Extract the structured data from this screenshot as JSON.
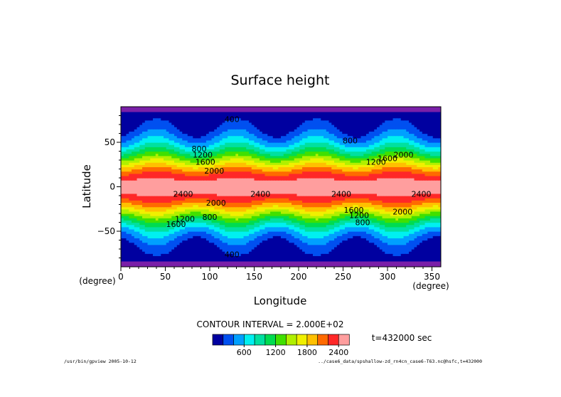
{
  "chart_data": {
    "type": "heatmap",
    "title": "Surface height",
    "xlabel": "Longitude",
    "ylabel": "Latitude",
    "x_unit": "(degree)",
    "y_unit": "(degree)",
    "xlim": [
      0,
      360
    ],
    "ylim": [
      -90,
      90
    ],
    "x_ticks": [
      0,
      50,
      100,
      150,
      200,
      250,
      300,
      350
    ],
    "y_ticks": [
      50,
      0,
      -50
    ],
    "y_tick_labels": [
      "50",
      "0",
      "−50"
    ],
    "contour_interval": 200,
    "contour_interval_text": "CONTOUR INTERVAL = 2.000E+02",
    "time_text": "t=432000 sec",
    "field": {
      "description": "wave-4 pattern of surface height",
      "wavenumber": 4,
      "max": 2500,
      "min": 0
    },
    "contour_labels": [
      {
        "text": "400",
        "lon": 125,
        "lat": 76
      },
      {
        "text": "400",
        "lon": 125,
        "lat": -76
      },
      {
        "text": "800",
        "lon": 258,
        "lat": 52
      },
      {
        "text": "800",
        "lon": 88,
        "lat": 43
      },
      {
        "text": "1200",
        "lon": 92,
        "lat": 36
      },
      {
        "text": "1600",
        "lon": 95,
        "lat": 28
      },
      {
        "text": "2000",
        "lon": 105,
        "lat": 18
      },
      {
        "text": "1200",
        "lon": 287,
        "lat": 28
      },
      {
        "text": "1600",
        "lon": 300,
        "lat": 32
      },
      {
        "text": "2000",
        "lon": 318,
        "lat": 36
      },
      {
        "text": "2400",
        "lon": 70,
        "lat": -8
      },
      {
        "text": "2400",
        "lon": 157,
        "lat": -8
      },
      {
        "text": "2400",
        "lon": 248,
        "lat": -8
      },
      {
        "text": "2400",
        "lon": 338,
        "lat": -8
      },
      {
        "text": "2000",
        "lon": 107,
        "lat": -18
      },
      {
        "text": "1600",
        "lon": 62,
        "lat": -42
      },
      {
        "text": "1200",
        "lon": 72,
        "lat": -36
      },
      {
        "text": "800",
        "lon": 100,
        "lat": -34
      },
      {
        "text": "1600",
        "lon": 262,
        "lat": -26
      },
      {
        "text": "1200",
        "lon": 268,
        "lat": -32
      },
      {
        "text": "800",
        "lon": 272,
        "lat": -40
      },
      {
        "text": "2000",
        "lon": 317,
        "lat": -28
      }
    ],
    "colorbar": {
      "colors": [
        "#0000a0",
        "#0050f0",
        "#00a0ff",
        "#00f0f0",
        "#00e0a0",
        "#00dc50",
        "#40e000",
        "#b0f000",
        "#f0f000",
        "#ffc000",
        "#ff6a00",
        "#ff2828",
        "#ff9e9e"
      ],
      "tick_labels": [
        "600",
        "1200",
        "1800",
        "2400"
      ],
      "tick_values": [
        600,
        1200,
        1800,
        2400
      ],
      "bins_start": 0,
      "bin_width": 200
    },
    "colors": {
      "lat_edge_band": "#7a1fa8"
    }
  },
  "footer": {
    "left": "/usr/bin/gpview  2005-10-12",
    "right": "../case6_data/spshallow-zd_rn4cn_case6-T63.nc@hsfc,t=432000"
  }
}
